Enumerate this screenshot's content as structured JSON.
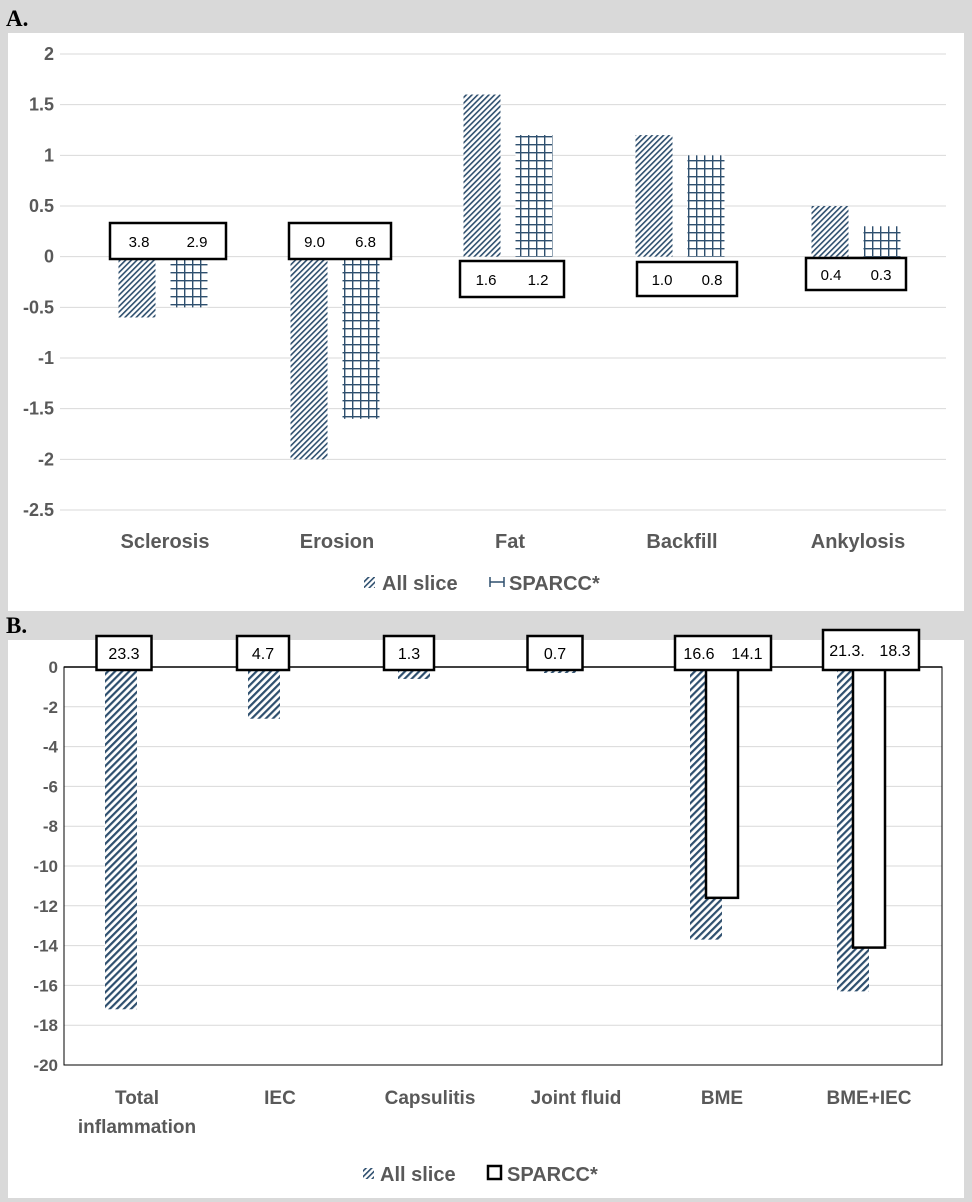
{
  "panel_labels": {
    "a": "A.",
    "b": "B."
  },
  "colors": {
    "all_slice": "#2e4f6e",
    "sparcc_grid": "#2e4f6e",
    "sparcc_open": "#000000",
    "gridline": "#d9d9d9"
  },
  "chart_data": [
    {
      "type": "bar",
      "panel": "A.",
      "categories": [
        "Sclerosis",
        "Erosion",
        "Fat",
        "Backfill",
        "Ankylosis"
      ],
      "ylim": [
        -2.5,
        2
      ],
      "yticks": [
        2,
        1.5,
        1,
        0.5,
        0,
        -0.5,
        -1,
        -1.5,
        -2,
        -2.5
      ],
      "grid": true,
      "legend_position": "bottom",
      "series": [
        {
          "name": "All slice",
          "values": [
            -0.6,
            -2.0,
            1.6,
            1.2,
            0.5
          ],
          "pattern": "diagonal-hatch"
        },
        {
          "name": "SPARCC*",
          "values": [
            -0.5,
            -1.6,
            1.2,
            1.0,
            0.3
          ],
          "pattern": "grid"
        }
      ],
      "annotations": [
        [
          "3.8",
          "2.9"
        ],
        [
          "9.0",
          "6.8"
        ],
        [
          "1.6",
          "1.2"
        ],
        [
          "1.0",
          "0.8"
        ],
        [
          "0.4",
          "0.3"
        ]
      ]
    },
    {
      "type": "bar",
      "panel": "B.",
      "categories": [
        "Total inflammation",
        "IEC",
        "Capsulitis",
        "Joint fluid",
        "BME",
        "BME+IEC"
      ],
      "ylim": [
        -20,
        0
      ],
      "yticks": [
        0,
        -2,
        -4,
        -6,
        -8,
        -10,
        -12,
        -14,
        -16,
        -18,
        -20
      ],
      "grid": true,
      "legend_position": "bottom",
      "series": [
        {
          "name": "All slice",
          "values": [
            -17.2,
            -2.6,
            -0.6,
            -0.3,
            -13.7,
            -16.3
          ],
          "pattern": "diagonal-hatch"
        },
        {
          "name": "SPARCC*",
          "values": [
            null,
            null,
            null,
            null,
            -11.6,
            -14.1
          ],
          "pattern": "open"
        }
      ],
      "annotations": [
        [
          "23.3"
        ],
        [
          "4.7"
        ],
        [
          "1.3"
        ],
        [
          "0.7"
        ],
        [
          "16.6",
          "14.1"
        ],
        [
          "21.3.",
          "18.3"
        ]
      ]
    }
  ]
}
